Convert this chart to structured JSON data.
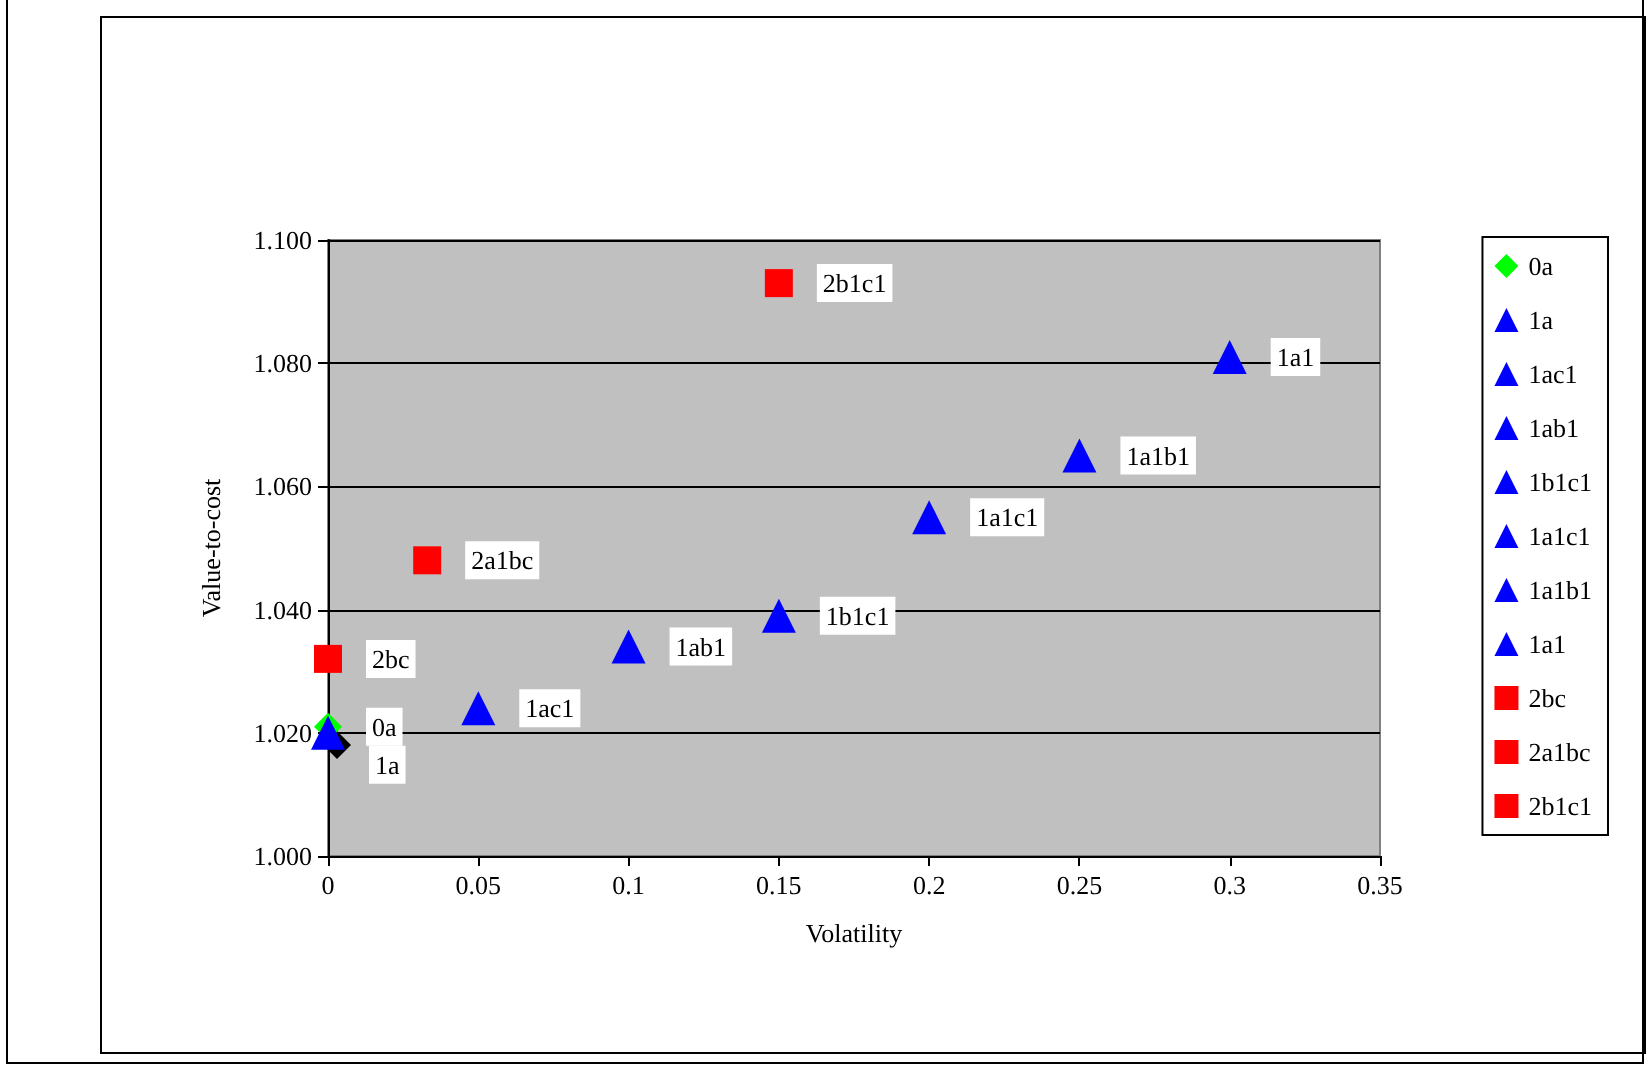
{
  "chart_data": {
    "type": "scatter",
    "xlabel": "Volatility",
    "ylabel": "Value-to-cost",
    "xlim": [
      0,
      0.35
    ],
    "xticks": [
      0,
      0.05,
      0.1,
      0.15,
      0.2,
      0.25,
      0.3,
      0.35
    ],
    "ylim": [
      1.0,
      1.1
    ],
    "yticks": [
      {
        "value": 1.0,
        "label": "1.000"
      },
      {
        "value": 1.02,
        "label": "1.020"
      },
      {
        "value": 1.04,
        "label": "1.040"
      },
      {
        "value": 1.06,
        "label": "1.060"
      },
      {
        "value": 1.08,
        "label": "1.080"
      },
      {
        "value": 1.1,
        "label": "1.100"
      }
    ],
    "grid": "y",
    "legend": "right",
    "series": [
      {
        "color": "#000000",
        "marker": "diamond",
        "x": [
          0.003
        ],
        "values": [
          1.018
        ]
      },
      {
        "name": "0a",
        "color": "#00ff00",
        "marker": "diamond",
        "x": [
          0
        ],
        "values": [
          1.021
        ]
      },
      {
        "name": "1a",
        "color": "#0000ff",
        "marker": "triangle",
        "x": [
          0
        ],
        "values": [
          1.02
        ]
      },
      {
        "name": "1ac1",
        "color": "#0000ff",
        "marker": "triangle",
        "x": [
          0.05
        ],
        "values": [
          1.024
        ]
      },
      {
        "name": "1ab1",
        "color": "#0000ff",
        "marker": "triangle",
        "x": [
          0.1
        ],
        "values": [
          1.034
        ]
      },
      {
        "name": "1b1c1",
        "color": "#0000ff",
        "marker": "triangle",
        "x": [
          0.15
        ],
        "values": [
          1.039
        ]
      },
      {
        "name": "1a1c1",
        "color": "#0000ff",
        "marker": "triangle",
        "x": [
          0.2
        ],
        "values": [
          1.055
        ]
      },
      {
        "name": "1a1b1",
        "color": "#0000ff",
        "marker": "triangle",
        "x": [
          0.25
        ],
        "values": [
          1.065
        ]
      },
      {
        "name": "1a1",
        "color": "#0000ff",
        "marker": "triangle",
        "x": [
          0.3
        ],
        "values": [
          1.081
        ]
      },
      {
        "name": "2bc",
        "color": "#ff0000",
        "marker": "square",
        "x": [
          0
        ],
        "values": [
          1.032
        ]
      },
      {
        "name": "2a1bc",
        "color": "#ff0000",
        "marker": "square",
        "x": [
          0.033
        ],
        "values": [
          1.048
        ]
      },
      {
        "name": "2b1c1",
        "color": "#ff0000",
        "marker": "square",
        "x": [
          0.15
        ],
        "values": [
          1.093
        ]
      }
    ]
  }
}
